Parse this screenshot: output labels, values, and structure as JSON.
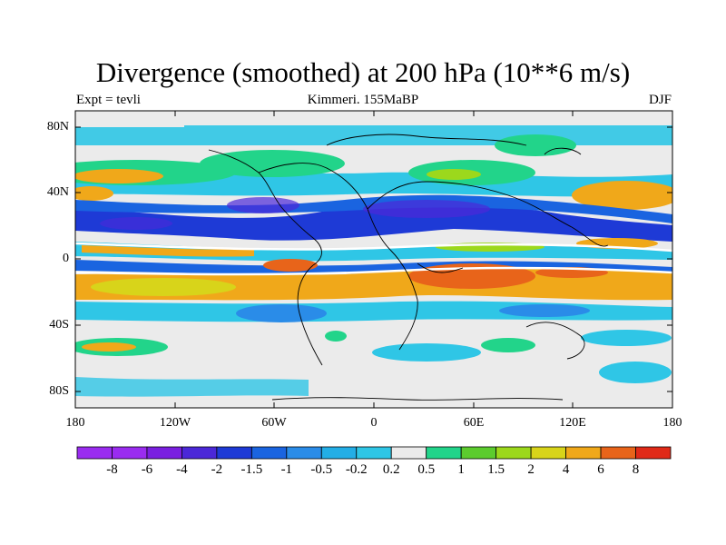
{
  "title": "Divergence (smoothed) at 200 hPa (10**6 m/s)",
  "subtitle_left": "Expt = tevli",
  "subtitle_center": "Kimmeri. 155MaBP",
  "subtitle_right": "DJF",
  "lat_labels": [
    "80N",
    "40N",
    "0",
    "40S",
    "80S"
  ],
  "lon_labels": [
    "180",
    "120W",
    "60W",
    "0",
    "60E",
    "120E",
    "180"
  ],
  "colorbar": {
    "labels": [
      "-8",
      "-6",
      "-4",
      "-2",
      "-1.5",
      "-1",
      "-0.5",
      "-0.2",
      "0.2",
      "0.5",
      "1",
      "1.5",
      "2",
      "4",
      "6",
      "8"
    ],
    "colors": [
      "#9a2cf0",
      "#7a1fe0",
      "#4b28d8",
      "#1e3ad6",
      "#1a64e0",
      "#2a8ce8",
      "#23aee6",
      "#2fc6e6",
      "#ebebeb",
      "#22d48a",
      "#5ccc2e",
      "#9cd81c",
      "#d8d41a",
      "#f0a81a",
      "#e8641a",
      "#e02a18"
    ]
  },
  "colors": {
    "background": "#ebebeb",
    "coast": "#000000"
  }
}
